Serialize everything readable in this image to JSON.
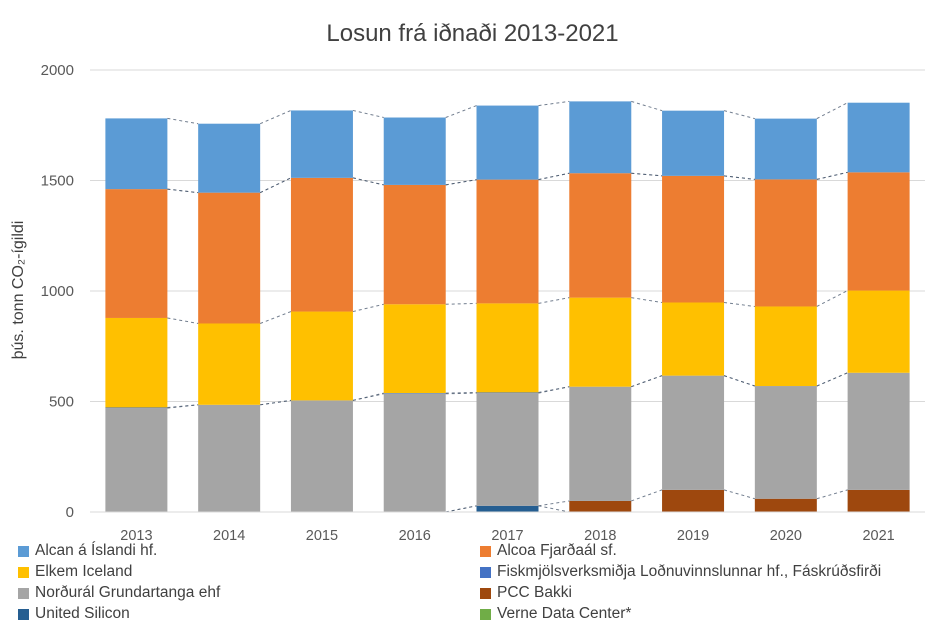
{
  "chart_data": {
    "type": "bar",
    "stacked": true,
    "title": "Losun frá iðnaði 2013-2021",
    "ylabel": "þús. tonn CO₂-ígildi",
    "ylim": [
      0,
      2000
    ],
    "yticks": [
      "0",
      "500",
      "1000",
      "1500",
      "2000"
    ],
    "categories": [
      "2013",
      "2014",
      "2015",
      "2016",
      "2017",
      "2018",
      "2019",
      "2020",
      "2021"
    ],
    "grid": true,
    "legend_position": "bottom",
    "series": [
      {
        "name": "United Silicon",
        "color": "#255e91",
        "values": [
          0,
          0,
          0,
          0,
          28,
          0,
          0,
          0,
          0
        ]
      },
      {
        "name": "PCC Bakki",
        "color": "#9e480e",
        "values": [
          0,
          0,
          0,
          0,
          0,
          50,
          100,
          60,
          100
        ]
      },
      {
        "name": "Norðurál Grundartanga ehf",
        "color": "#a5a5a5",
        "values": [
          470,
          485,
          505,
          535,
          510,
          517,
          517,
          510,
          530
        ]
      },
      {
        "name": "Fiskmjölsverksmiðja Loðnuvinnslunnar hf., Fáskrúðsfirði",
        "color": "#4472c4",
        "values": [
          3,
          0,
          0,
          3,
          3,
          0,
          0,
          0,
          0
        ]
      },
      {
        "name": "Elkem Iceland",
        "color": "#ffc000",
        "values": [
          405,
          368,
          402,
          402,
          403,
          403,
          331,
          360,
          372
        ]
      },
      {
        "name": "Alcoa Fjarðaál sf.",
        "color": "#ed7d31",
        "values": [
          583,
          592,
          605,
          540,
          560,
          563,
          573,
          575,
          535
        ]
      },
      {
        "name": "Verne Data Center*",
        "color": "#70ad47",
        "values": [
          0,
          0,
          0,
          0,
          0,
          0,
          0,
          0,
          0
        ]
      },
      {
        "name": "Alcan á Íslandi hf.",
        "color": "#5b9bd5",
        "values": [
          320,
          312,
          305,
          305,
          335,
          325,
          295,
          275,
          315
        ]
      }
    ],
    "legend_order": [
      "Alcan á Íslandi hf.",
      "Alcoa Fjarðaál sf.",
      "Elkem Iceland",
      "Fiskmjölsverksmiðja Loðnuvinnslunnar hf., Fáskrúðsfirði",
      "Norðurál Grundartanga ehf",
      "PCC Bakki",
      "United Silicon",
      "Verne Data Center*"
    ]
  }
}
